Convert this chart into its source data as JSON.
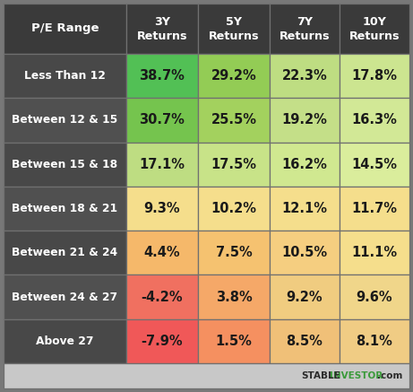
{
  "col_headers": [
    "P/E Range",
    "3Y\nReturns",
    "5Y\nReturns",
    "7Y\nReturns",
    "10Y\nReturns"
  ],
  "row_labels": [
    "Less Than 12",
    "Between 12 & 15",
    "Between 15 & 18",
    "Between 18 & 21",
    "Between 21 & 24",
    "Between 24 & 27",
    "Above 27"
  ],
  "values": [
    [
      "38.7%",
      "29.2%",
      "22.3%",
      "17.8%"
    ],
    [
      "30.7%",
      "25.5%",
      "19.2%",
      "16.3%"
    ],
    [
      "17.1%",
      "17.5%",
      "16.2%",
      "14.5%"
    ],
    [
      "9.3%",
      "10.2%",
      "12.1%",
      "11.7%"
    ],
    [
      "4.4%",
      "7.5%",
      "10.5%",
      "11.1%"
    ],
    [
      "-4.2%",
      "3.8%",
      "9.2%",
      "9.6%"
    ],
    [
      "-7.9%",
      "1.5%",
      "8.5%",
      "8.1%"
    ]
  ],
  "cell_colors": [
    [
      "#52c055",
      "#93cc55",
      "#bedd82",
      "#cce590"
    ],
    [
      "#75c44e",
      "#a3d15e",
      "#c4df88",
      "#d2e896"
    ],
    [
      "#bedd82",
      "#c8e388",
      "#d0e890",
      "#daed9c"
    ],
    [
      "#f5de8c",
      "#f5de8c",
      "#f5de8c",
      "#f5de8c"
    ],
    [
      "#f5b86a",
      "#f5c270",
      "#f5ce80",
      "#f5de8c"
    ],
    [
      "#f07060",
      "#f5a868",
      "#f0cc80",
      "#f0d68a"
    ],
    [
      "#f05858",
      "#f59060",
      "#f0c078",
      "#f0cc84"
    ]
  ],
  "header_bg": "#3a3a3a",
  "row_label_bg": "#4a4a4a",
  "alt_row_bg": "#555555",
  "header_text_color": "#ffffff",
  "row_label_text_color": "#ffffff",
  "value_text_color": "#1a1a1a",
  "border_color": "#707070",
  "footer_bg": "#c8c8c8",
  "footer_stable_color": "#2a2a2a",
  "footer_investor_color": "#3a9a3a",
  "footer_com_color": "#2a2a2a",
  "outer_bg": "#787878"
}
